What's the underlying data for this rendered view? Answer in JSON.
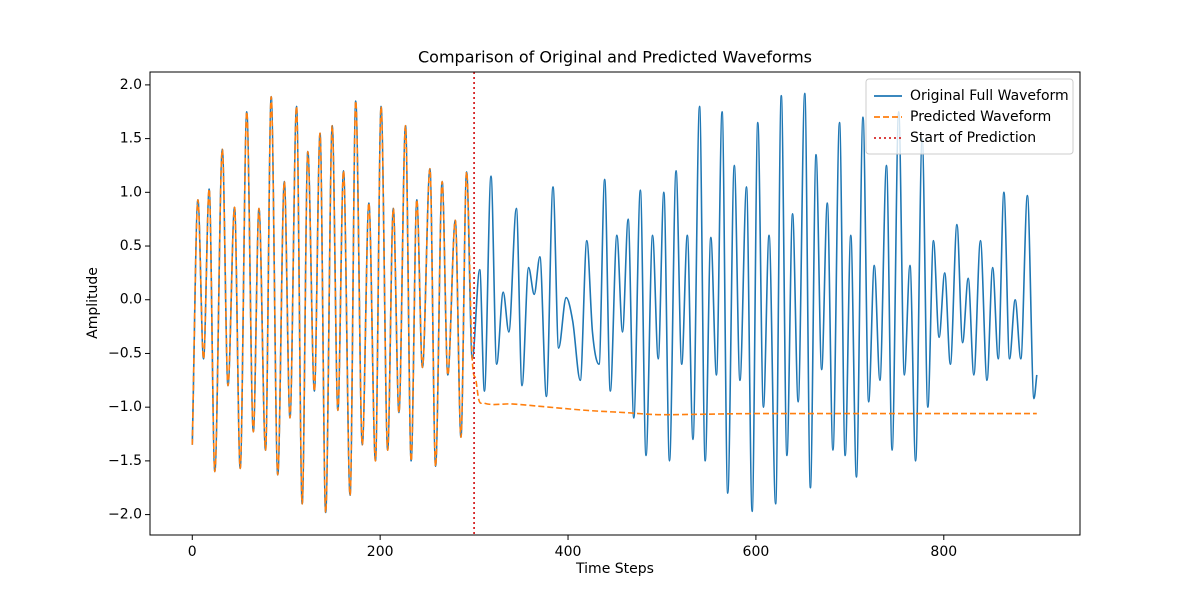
{
  "chart_data": {
    "type": "line",
    "title": "Comparison of Original and Predicted Waveforms",
    "x_label": "Time Steps",
    "y_label": "Amplitude",
    "xlim": [
      -45,
      945
    ],
    "ylim": [
      -2.19,
      2.12
    ],
    "xticks": [
      0,
      200,
      400,
      600,
      800
    ],
    "yticks": [
      {
        "value": -2.0,
        "label": "−2.0"
      },
      {
        "value": -1.5,
        "label": "−1.5"
      },
      {
        "value": -1.0,
        "label": "−1.0"
      },
      {
        "value": -0.5,
        "label": "−0.5"
      },
      {
        "value": 0.0,
        "label": "0.0"
      },
      {
        "value": 0.5,
        "label": "0.5"
      },
      {
        "value": 1.0,
        "label": "1.0"
      },
      {
        "value": 1.5,
        "label": "1.5"
      },
      {
        "value": 2.0,
        "label": "2.0"
      }
    ],
    "legend": "upper right",
    "series": [
      {
        "name": "Original Full Waveform",
        "color": "#1f77b4",
        "style": "solid",
        "x": [
          0,
          6,
          12,
          18,
          24,
          32,
          38,
          45,
          51,
          58,
          65,
          71,
          78,
          84,
          91,
          98,
          104,
          111,
          117,
          123,
          130,
          136,
          142,
          149,
          155,
          161,
          168,
          174,
          181,
          188,
          195,
          201,
          208,
          214,
          220,
          227,
          233,
          239,
          245,
          253,
          259,
          266,
          272,
          280,
          286,
          292,
          298,
          306,
          311,
          318,
          324,
          331,
          337,
          345,
          351,
          358,
          364,
          370,
          377,
          384,
          390,
          398,
          405,
          413,
          420,
          426,
          433,
          439,
          445,
          452,
          458,
          464,
          470,
          477,
          483,
          490,
          496,
          502,
          508,
          515,
          521,
          527,
          533,
          540,
          546,
          552,
          558,
          564,
          570,
          577,
          583,
          590,
          596,
          602,
          608,
          614,
          621,
          627,
          633,
          639,
          645,
          652,
          658,
          664,
          670,
          676,
          682,
          689,
          695,
          701,
          707,
          714,
          720,
          726,
          732,
          739,
          745,
          752,
          758,
          764,
          770,
          777,
          783,
          789,
          795,
          801,
          807,
          814,
          820,
          826,
          832,
          839,
          846,
          852,
          858,
          864,
          870,
          876,
          882,
          889,
          896,
          899
        ],
        "values": [
          -1.35,
          0.93,
          -0.55,
          1.03,
          -1.6,
          1.4,
          -0.8,
          0.86,
          -1.57,
          1.75,
          -1.23,
          0.85,
          -1.4,
          1.89,
          -1.63,
          1.1,
          -1.1,
          1.8,
          -1.9,
          1.38,
          -0.85,
          1.55,
          -1.98,
          1.62,
          -1.03,
          1.2,
          -1.82,
          1.85,
          -1.35,
          0.9,
          -1.5,
          1.8,
          -1.4,
          0.85,
          -1.05,
          1.62,
          -1.5,
          0.93,
          -0.63,
          1.22,
          -1.55,
          1.1,
          -0.7,
          0.74,
          -1.28,
          1.19,
          -0.55,
          0.28,
          -0.85,
          1.15,
          -0.6,
          0.07,
          -0.3,
          0.85,
          -0.8,
          0.3,
          0.05,
          0.4,
          -0.9,
          1.05,
          -0.45,
          0.02,
          -0.2,
          -0.75,
          0.55,
          -0.3,
          -0.6,
          1.12,
          -0.85,
          0.6,
          -0.3,
          0.75,
          -1.1,
          1.02,
          -1.45,
          0.6,
          -0.55,
          1.0,
          -1.5,
          1.2,
          -0.6,
          0.6,
          -1.3,
          1.8,
          -1.5,
          0.58,
          -0.7,
          1.75,
          -1.8,
          1.25,
          -0.75,
          1.05,
          -1.97,
          1.65,
          -1.0,
          0.6,
          -1.9,
          1.9,
          -1.45,
          0.8,
          -0.95,
          1.92,
          -1.75,
          1.35,
          -0.65,
          0.9,
          -1.4,
          1.65,
          -1.45,
          0.6,
          -1.65,
          1.7,
          -0.95,
          0.32,
          -0.75,
          1.25,
          -1.4,
          1.75,
          -0.7,
          0.32,
          -1.5,
          1.5,
          -1.0,
          0.55,
          -0.35,
          0.25,
          -0.6,
          0.7,
          -0.4,
          0.2,
          -0.7,
          0.55,
          -0.75,
          0.3,
          -0.55,
          1.0,
          -0.55,
          0.0,
          -0.55,
          0.97,
          -0.92,
          -0.7
        ]
      },
      {
        "name": "Predicted Waveform",
        "color": "#ff7f0e",
        "style": "dashed",
        "x": [
          0,
          6,
          12,
          18,
          24,
          32,
          38,
          45,
          51,
          58,
          65,
          71,
          78,
          84,
          91,
          98,
          104,
          111,
          117,
          123,
          130,
          136,
          142,
          149,
          155,
          161,
          168,
          174,
          181,
          188,
          195,
          201,
          208,
          214,
          220,
          227,
          233,
          239,
          245,
          253,
          259,
          266,
          272,
          280,
          286,
          292,
          298,
          302,
          305,
          310,
          340,
          380,
          420,
          460,
          500,
          600,
          899
        ],
        "values": [
          -1.35,
          0.93,
          -0.55,
          1.03,
          -1.6,
          1.4,
          -0.8,
          0.86,
          -1.57,
          1.75,
          -1.23,
          0.85,
          -1.4,
          1.89,
          -1.63,
          1.1,
          -1.1,
          1.8,
          -1.9,
          1.38,
          -0.85,
          1.55,
          -1.98,
          1.62,
          -1.03,
          1.2,
          -1.82,
          1.85,
          -1.35,
          0.9,
          -1.5,
          1.8,
          -1.4,
          0.85,
          -1.05,
          1.62,
          -1.5,
          0.93,
          -0.63,
          1.22,
          -1.55,
          1.1,
          -0.7,
          0.74,
          -1.28,
          1.19,
          -0.55,
          -0.75,
          -0.93,
          -0.96,
          -0.97,
          -1.0,
          -1.03,
          -1.05,
          -1.07,
          -1.06,
          -1.06
        ]
      }
    ],
    "vlines": [
      {
        "name": "Start of Prediction",
        "color": "#d62728",
        "style": "dotted",
        "x": 300
      }
    ]
  }
}
